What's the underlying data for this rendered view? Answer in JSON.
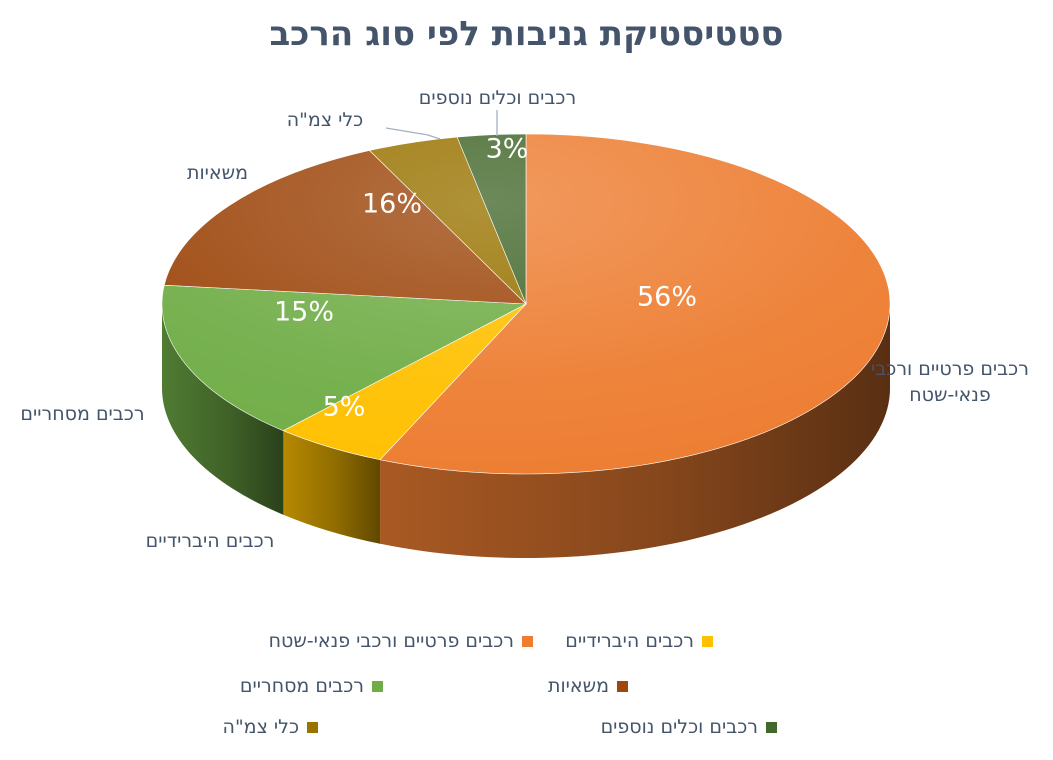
{
  "chart_data": {
    "type": "pie",
    "title": "סטטיסטיקת גניבות לפי סוג הרכב",
    "categories": [
      "רכבים פרטיים ורכבי פנאי-שטח",
      "רכבים היברידיים",
      "רכבים מסחריים",
      "משאיות",
      "כלי צמ\"ה",
      "רכבים וכלים נוספים"
    ],
    "values": [
      56,
      5,
      15,
      16,
      4,
      3
    ],
    "data_labels": [
      "56%",
      "5%",
      "15%",
      "16%",
      "",
      "3%"
    ],
    "category_labels": [
      "רכבים פרטיים ורכבי פנאי-שטח",
      "רכבים היברידיים",
      "רכבים מסחריים",
      "משאיות",
      "כלי צמ\"ה",
      "רכבים וכלים נוספים"
    ],
    "colors": [
      "#ed7d31",
      "#ffc000",
      "#70ad47",
      "#9e480e",
      "#997300",
      "#43682b"
    ],
    "legend_position": "bottom"
  }
}
